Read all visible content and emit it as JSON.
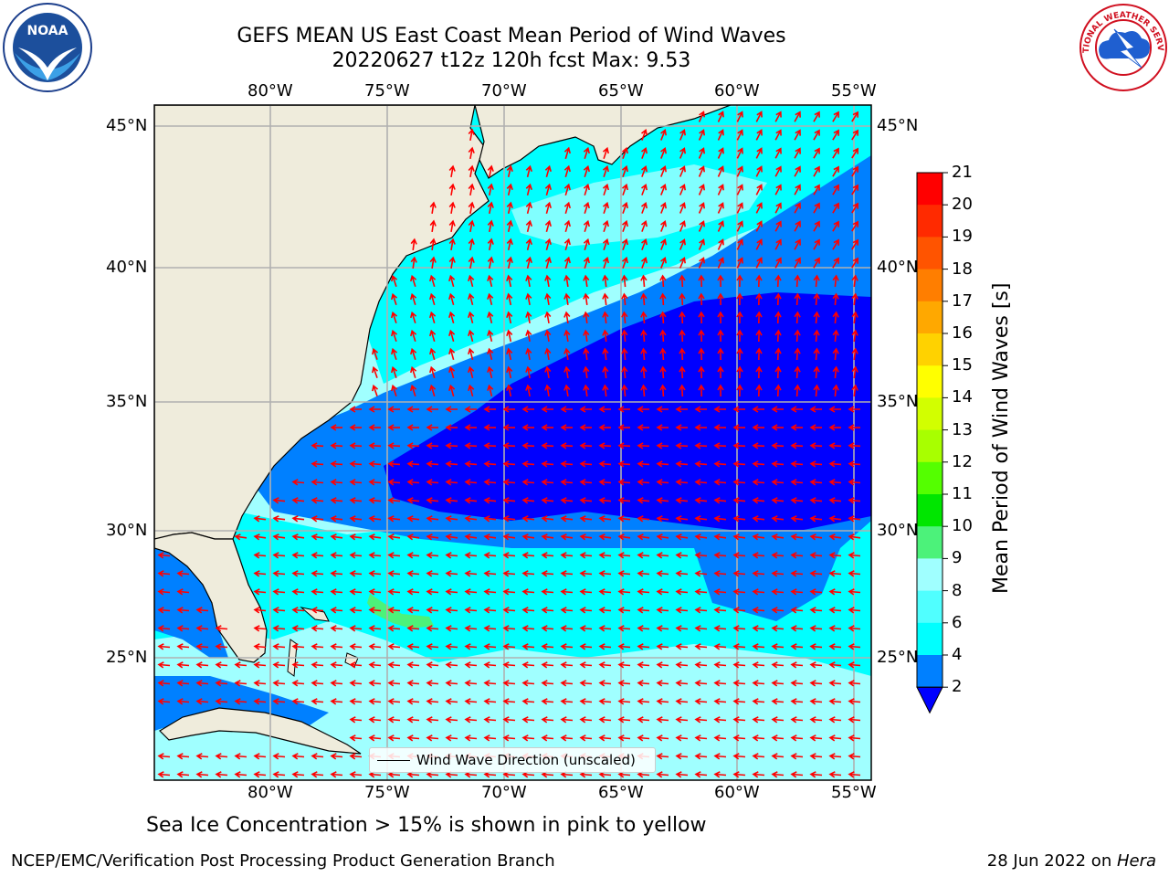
{
  "header": {
    "title_line1": "GEFS MEAN US East Coast Mean Period of Wind Waves",
    "title_line2": "20220627 t12z 120h fcst   Max: 9.53"
  },
  "map": {
    "lon_labels": [
      "80°W",
      "75°W",
      "70°W",
      "65°W",
      "60°W",
      "55°W"
    ],
    "lat_labels": [
      "45°N",
      "40°N",
      "35°N",
      "30°N",
      "25°N"
    ],
    "legend_label": "Wind Wave Direction (unscaled)",
    "arrow_color": "#ff0000",
    "land_color": "#efecdc"
  },
  "colorbar": {
    "label": "Mean Period of Wind Waves [s]",
    "ticks": [
      "21",
      "20",
      "19",
      "18",
      "17",
      "16",
      "15",
      "14",
      "13",
      "12",
      "11",
      "10",
      "9",
      "8",
      "6",
      "4",
      "2"
    ],
    "colors": [
      "#ff0000",
      "#ff2a00",
      "#ff5400",
      "#ff7e00",
      "#ffa800",
      "#ffd200",
      "#ffff00",
      "#d2ff00",
      "#a8ff00",
      "#54ff00",
      "#00e600",
      "#4cf27a",
      "#a0ffff",
      "#50ffff",
      "#00ffff",
      "#0080ff",
      "#0000ff"
    ]
  },
  "notes": {
    "ice": "Sea Ice Concentration > 15% is shown in pink to yellow"
  },
  "footer": {
    "left": "NCEP/EMC/Verification Post Processing Product Generation Branch",
    "right_date": "28 Jun 2022 on ",
    "right_host": "Hera"
  },
  "logos": {
    "noaa_text": "NOAA",
    "nws_text": "NATIONAL WEATHER SERVICE"
  }
}
